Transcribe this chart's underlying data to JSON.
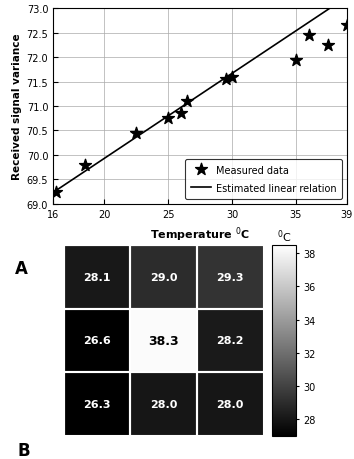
{
  "scatter_x": [
    16.2,
    18.5,
    22.5,
    25.0,
    26.0,
    26.5,
    29.5,
    30.0,
    35.0,
    36.0,
    37.5,
    39.0
  ],
  "scatter_y": [
    69.25,
    69.8,
    70.45,
    70.75,
    70.85,
    71.1,
    71.55,
    71.6,
    71.95,
    72.45,
    72.25,
    72.65
  ],
  "line_x": [
    16,
    39
  ],
  "line_slope": 0.1739,
  "line_intercept": 66.45,
  "xlabel": "Temperature $^0$C",
  "ylabel": "Received signal variance",
  "xlim": [
    16,
    39
  ],
  "ylim": [
    69,
    73
  ],
  "yticks": [
    69,
    69.5,
    70,
    70.5,
    71,
    71.5,
    72,
    72.5,
    73
  ],
  "xticks": [
    16,
    20,
    25,
    30,
    35,
    39
  ],
  "legend_scatter": "Measured data",
  "legend_line": "Estimated linear relation",
  "label_A": "A",
  "label_B": "B",
  "grid_data": [
    [
      28.1,
      29.0,
      29.3
    ],
    [
      26.6,
      38.3,
      28.2
    ],
    [
      26.3,
      28.0,
      28.0
    ]
  ],
  "colorbar_label": "$^0$C",
  "cmap_vmin": 27,
  "cmap_vmax": 38.5,
  "colorbar_ticks": [
    28,
    30,
    32,
    34,
    36,
    38
  ]
}
